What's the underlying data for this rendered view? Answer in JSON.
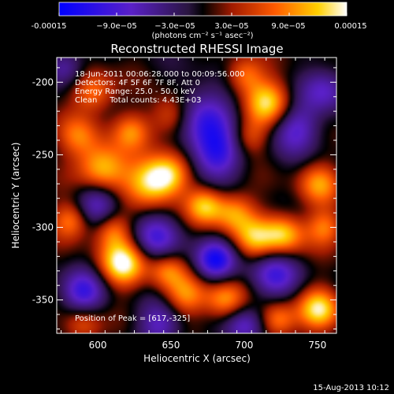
{
  "colorbar": {
    "tick_labels": [
      "-0.00015",
      "−9.0e−05",
      "−3.0e−05",
      "3.0e−05",
      "9.0e−05",
      "0.00015"
    ],
    "unit_label": "(photons cm⁻² s⁻¹ asec⁻²)"
  },
  "chart_data": {
    "type": "heatmap",
    "title": "Reconstructed RHESSI Image",
    "xlabel": "Heliocentric X (arcsec)",
    "ylabel": "Heliocentric Y (arcsec)",
    "xlim": [
      572,
      763
    ],
    "ylim": [
      -373,
      -183
    ],
    "x_ticks": [
      "600",
      "650",
      "700",
      "750"
    ],
    "y_ticks": [
      "-200",
      "-250",
      "-300",
      "-350"
    ],
    "x_tick_values": [
      600,
      650,
      700,
      750
    ],
    "y_tick_values": [
      -200,
      -250,
      -300,
      -350
    ],
    "value_range": [
      -0.00015,
      0.00015
    ],
    "annotations": [
      "18-Jun-2011 00:06:28.000 to 00:09:56.000",
      "Detectors: 4F 5F 6F 7F 8F, Att 0",
      "Energy Range: 25.0 - 50.0 keV",
      "Clean     Total counts: 4.43E+03"
    ],
    "peak_label": "Position of Peak = [617,-325]",
    "peak": [
      617,
      -325
    ],
    "blobs": [
      {
        "x": 617,
        "y": -325,
        "v": 1.0,
        "r": 11
      },
      {
        "x": 603,
        "y": -259,
        "v": 0.85,
        "r": 12
      },
      {
        "x": 637,
        "y": -268,
        "v": 0.9,
        "r": 12
      },
      {
        "x": 650,
        "y": -263,
        "v": 0.6,
        "r": 10
      },
      {
        "x": 716,
        "y": -214,
        "v": 0.85,
        "r": 11
      },
      {
        "x": 700,
        "y": -195,
        "v": 0.55,
        "r": 9
      },
      {
        "x": 650,
        "y": -223,
        "v": 0.55,
        "r": 10
      },
      {
        "x": 623,
        "y": -234,
        "v": 0.5,
        "r": 9
      },
      {
        "x": 597,
        "y": -207,
        "v": 0.6,
        "r": 10
      },
      {
        "x": 587,
        "y": -237,
        "v": 0.5,
        "r": 10
      },
      {
        "x": 673,
        "y": -285,
        "v": 0.75,
        "r": 9
      },
      {
        "x": 693,
        "y": -290,
        "v": 0.65,
        "r": 10
      },
      {
        "x": 707,
        "y": -308,
        "v": 0.65,
        "r": 10
      },
      {
        "x": 727,
        "y": -305,
        "v": 0.8,
        "r": 10
      },
      {
        "x": 751,
        "y": -270,
        "v": 0.6,
        "r": 10
      },
      {
        "x": 755,
        "y": -300,
        "v": 0.55,
        "r": 9
      },
      {
        "x": 751,
        "y": -356,
        "v": 0.85,
        "r": 10
      },
      {
        "x": 723,
        "y": -364,
        "v": 0.65,
        "r": 9
      },
      {
        "x": 687,
        "y": -350,
        "v": 0.7,
        "r": 10
      },
      {
        "x": 660,
        "y": -347,
        "v": 0.6,
        "r": 10
      },
      {
        "x": 647,
        "y": -330,
        "v": 0.55,
        "r": 9
      },
      {
        "x": 610,
        "y": -302,
        "v": 0.55,
        "r": 9
      },
      {
        "x": 582,
        "y": -295,
        "v": 0.6,
        "r": 9
      },
      {
        "x": 590,
        "y": -367,
        "v": 0.5,
        "r": 9
      },
      {
        "x": 703,
        "y": -238,
        "v": 0.45,
        "r": 9
      },
      {
        "x": 673,
        "y": -223,
        "v": -0.7,
        "r": 14
      },
      {
        "x": 680,
        "y": -250,
        "v": -0.75,
        "r": 13
      },
      {
        "x": 735,
        "y": -232,
        "v": -0.6,
        "r": 12
      },
      {
        "x": 600,
        "y": -283,
        "v": -0.6,
        "r": 11
      },
      {
        "x": 640,
        "y": -307,
        "v": -0.6,
        "r": 12
      },
      {
        "x": 680,
        "y": -323,
        "v": -0.85,
        "r": 10
      },
      {
        "x": 720,
        "y": -333,
        "v": -0.65,
        "r": 12
      },
      {
        "x": 590,
        "y": -345,
        "v": -0.7,
        "r": 11
      },
      {
        "x": 643,
        "y": -367,
        "v": -0.55,
        "r": 11
      },
      {
        "x": 700,
        "y": -368,
        "v": -0.6,
        "r": 10
      },
      {
        "x": 755,
        "y": -205,
        "v": -0.55,
        "r": 11
      },
      {
        "x": 578,
        "y": -190,
        "v": -0.5,
        "r": 9
      }
    ]
  },
  "footer": {
    "timestamp": "15-Aug-2013 10:12"
  },
  "colors": {
    "background": "#000000",
    "text": "#ffffff"
  }
}
